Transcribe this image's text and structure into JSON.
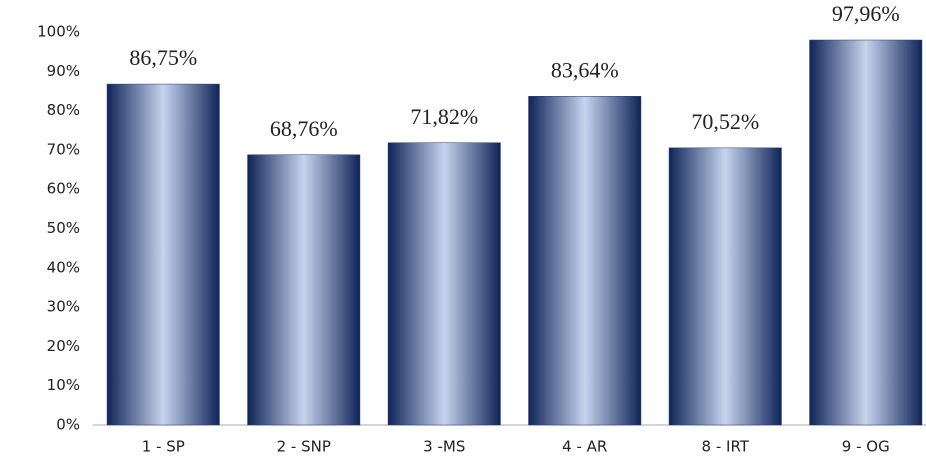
{
  "chart_data": {
    "type": "bar",
    "categories": [
      "1 - SP",
      "2 - SNP",
      "3 -MS",
      "4 - AR",
      "8 - IRT",
      "9 - OG"
    ],
    "values": [
      86.75,
      68.76,
      71.82,
      83.64,
      70.52,
      97.96
    ],
    "value_labels": [
      "86,75%",
      "68,76%",
      "71,82%",
      "83,64%",
      "70,52%",
      "97,96%"
    ],
    "color": "#1f3a7a",
    "ylim": [
      0,
      100
    ],
    "yticks": [
      {
        "value": 0,
        "label": "0%"
      },
      {
        "value": 10,
        "label": "10%"
      },
      {
        "value": 20,
        "label": "20%"
      },
      {
        "value": 30,
        "label": "30%"
      },
      {
        "value": 40,
        "label": "40%"
      },
      {
        "value": 50,
        "label": "50%"
      },
      {
        "value": 60,
        "label": "60%"
      },
      {
        "value": 70,
        "label": "70%"
      },
      {
        "value": 80,
        "label": "80%"
      },
      {
        "value": 90,
        "label": "90%"
      },
      {
        "value": 100,
        "label": "100%"
      }
    ],
    "grid": false
  }
}
